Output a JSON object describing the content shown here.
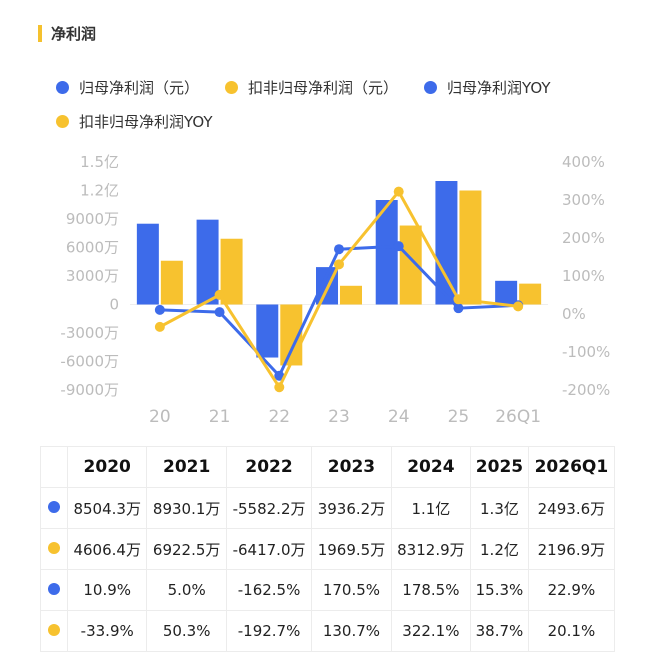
{
  "title": "净利润",
  "colors": {
    "blue": "#3D6BEA",
    "yellow": "#F7C22F",
    "accent_bar": "#F5C12E",
    "axis_text": "#bcbcbc"
  },
  "legend": [
    {
      "label": "归母净利润（元）",
      "color": "#3D6BEA"
    },
    {
      "label": "扣非归母净利润（元）",
      "color": "#F7C22F"
    },
    {
      "label": "归母净利润YOY",
      "color": "#3D6BEA"
    },
    {
      "label": "扣非归母净利润YOY",
      "color": "#F7C22F"
    }
  ],
  "chart_data": {
    "type": "bar",
    "categories": [
      "20",
      "21",
      "22",
      "23",
      "24",
      "25",
      "26Q1"
    ],
    "left_axis": {
      "unit": "万",
      "ylim": [
        -9000,
        15000
      ],
      "ticks": [
        "1.5亿",
        "1.2亿",
        "9000万",
        "6000万",
        "3000万",
        "0",
        "-3000万",
        "-6000万",
        "-9000万"
      ]
    },
    "right_axis": {
      "unit": "%",
      "ylim": [
        -200,
        400
      ],
      "ticks": [
        "400%",
        "300%",
        "200%",
        "100%",
        "0%",
        "-100%",
        "-200%"
      ]
    },
    "series": [
      {
        "name": "归母净利润（元）",
        "kind": "bar",
        "axis": "left",
        "values": [
          8504.3,
          8930.1,
          -5582.2,
          3936.2,
          11000,
          13000,
          2493.6
        ]
      },
      {
        "name": "扣非归母净利润（元）",
        "kind": "bar",
        "axis": "left",
        "values": [
          4606.4,
          6922.5,
          -6417.0,
          1969.5,
          8312.9,
          12000,
          2196.9
        ]
      },
      {
        "name": "归母净利润YOY",
        "kind": "line",
        "axis": "right",
        "values": [
          10.9,
          5.0,
          -162.5,
          170.5,
          178.5,
          15.3,
          22.9
        ]
      },
      {
        "name": "扣非归母净利润YOY",
        "kind": "line",
        "axis": "right",
        "values": [
          -33.9,
          50.3,
          -192.7,
          130.7,
          322.1,
          38.7,
          20.1
        ]
      }
    ],
    "grid": false
  },
  "table": {
    "headers": [
      "2020",
      "2021",
      "2022",
      "2023",
      "2024",
      "2025",
      "2026Q1"
    ],
    "rows": [
      {
        "color": "#3D6BEA",
        "cells": [
          "8504.3万",
          "8930.1万",
          "-5582.2万",
          "3936.2万",
          "1.1亿",
          "1.3亿",
          "2493.6万"
        ]
      },
      {
        "color": "#F7C22F",
        "cells": [
          "4606.4万",
          "6922.5万",
          "-6417.0万",
          "1969.5万",
          "8312.9万",
          "1.2亿",
          "2196.9万"
        ]
      },
      {
        "color": "#3D6BEA",
        "cells": [
          "10.9%",
          "5.0%",
          "-162.5%",
          "170.5%",
          "178.5%",
          "15.3%",
          "22.9%"
        ]
      },
      {
        "color": "#F7C22F",
        "cells": [
          "-33.9%",
          "50.3%",
          "-192.7%",
          "130.7%",
          "322.1%",
          "38.7%",
          "20.1%"
        ]
      }
    ]
  }
}
